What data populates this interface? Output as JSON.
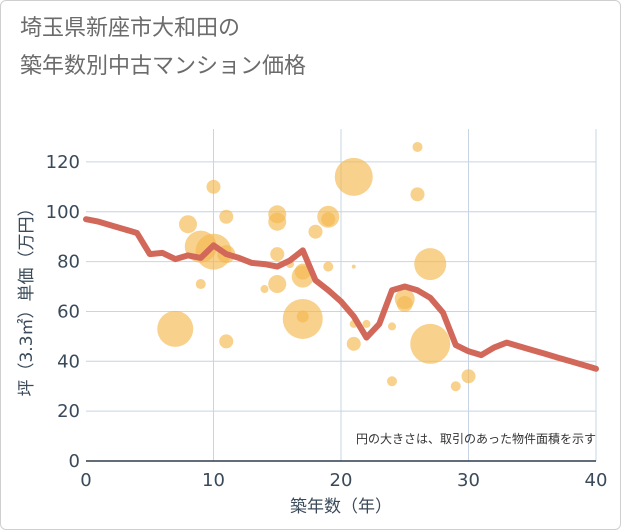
{
  "title_line1": "埼玉県新座市大和田の",
  "title_line2": "築年数別中古マンション価格",
  "colors": {
    "bubble": "#f5b94e",
    "line": "#d2685a",
    "grid": "#c6d4e4",
    "axis_text": "#3a4a5a",
    "title_text": "#6b6b6b"
  },
  "chart_data": {
    "type": "scatter",
    "xlabel": "築年数（年）",
    "ylabel": "坪（3.3㎡）単価（万円）",
    "xlim": [
      0,
      40
    ],
    "ylim": [
      0,
      130
    ],
    "xticks": [
      "0",
      "10",
      "20",
      "30",
      "40"
    ],
    "yticks": [
      "0",
      "20",
      "40",
      "60",
      "80",
      "100",
      "120"
    ],
    "grid": true,
    "note": "円の大きさは、取引のあった物件面積を示す",
    "bubbles": [
      {
        "x": 7,
        "y": 53,
        "size": 18
      },
      {
        "x": 8,
        "y": 95,
        "size": 9
      },
      {
        "x": 9,
        "y": 71,
        "size": 5
      },
      {
        "x": 9,
        "y": 86,
        "size": 16
      },
      {
        "x": 10,
        "y": 84,
        "size": 18
      },
      {
        "x": 10,
        "y": 110,
        "size": 7
      },
      {
        "x": 11,
        "y": 98,
        "size": 7
      },
      {
        "x": 11,
        "y": 83,
        "size": 9
      },
      {
        "x": 11,
        "y": 48,
        "size": 7
      },
      {
        "x": 14,
        "y": 69,
        "size": 4
      },
      {
        "x": 15,
        "y": 99,
        "size": 9
      },
      {
        "x": 15,
        "y": 96,
        "size": 9
      },
      {
        "x": 15,
        "y": 83,
        "size": 7
      },
      {
        "x": 15,
        "y": 71,
        "size": 9
      },
      {
        "x": 16,
        "y": 79,
        "size": 4
      },
      {
        "x": 17,
        "y": 76,
        "size": 8
      },
      {
        "x": 17,
        "y": 74,
        "size": 11
      },
      {
        "x": 17,
        "y": 57,
        "size": 20
      },
      {
        "x": 17,
        "y": 58,
        "size": 6
      },
      {
        "x": 18,
        "y": 92,
        "size": 7
      },
      {
        "x": 19,
        "y": 98,
        "size": 11
      },
      {
        "x": 19,
        "y": 97,
        "size": 7
      },
      {
        "x": 19,
        "y": 78,
        "size": 5
      },
      {
        "x": 21,
        "y": 114,
        "size": 19
      },
      {
        "x": 21,
        "y": 78,
        "size": 2
      },
      {
        "x": 21,
        "y": 55,
        "size": 4
      },
      {
        "x": 21,
        "y": 47,
        "size": 7
      },
      {
        "x": 22,
        "y": 55,
        "size": 4
      },
      {
        "x": 24,
        "y": 54,
        "size": 4
      },
      {
        "x": 24,
        "y": 32,
        "size": 5
      },
      {
        "x": 25,
        "y": 65,
        "size": 10
      },
      {
        "x": 25,
        "y": 63,
        "size": 8
      },
      {
        "x": 26,
        "y": 126,
        "size": 5
      },
      {
        "x": 26,
        "y": 107,
        "size": 7
      },
      {
        "x": 27,
        "y": 79,
        "size": 16
      },
      {
        "x": 27,
        "y": 47,
        "size": 20
      },
      {
        "x": 29,
        "y": 30,
        "size": 5
      },
      {
        "x": 30,
        "y": 34,
        "size": 7
      }
    ],
    "series": [
      {
        "x": [
          0,
          1,
          2,
          3,
          4,
          5,
          6,
          7,
          8,
          9,
          10,
          11,
          12,
          13,
          14,
          15,
          16,
          17,
          18,
          19,
          20,
          21,
          22,
          23,
          24,
          25,
          26,
          27,
          28,
          29,
          30,
          31,
          32,
          33,
          34,
          35,
          36,
          37,
          38,
          39,
          40
        ],
        "values": [
          97,
          96,
          94.5,
          93,
          91.5,
          83,
          83.5,
          81,
          82.5,
          81.5,
          86.5,
          83,
          81.5,
          79.5,
          79,
          78,
          80.5,
          84.5,
          72.5,
          68.5,
          64,
          58,
          49.5,
          55,
          68.5,
          70,
          68.5,
          65.5,
          59.5,
          46.5,
          44,
          42.5,
          45.5,
          47.5,
          46,
          44.5,
          43,
          41.5,
          40,
          38.5,
          37
        ]
      }
    ]
  }
}
